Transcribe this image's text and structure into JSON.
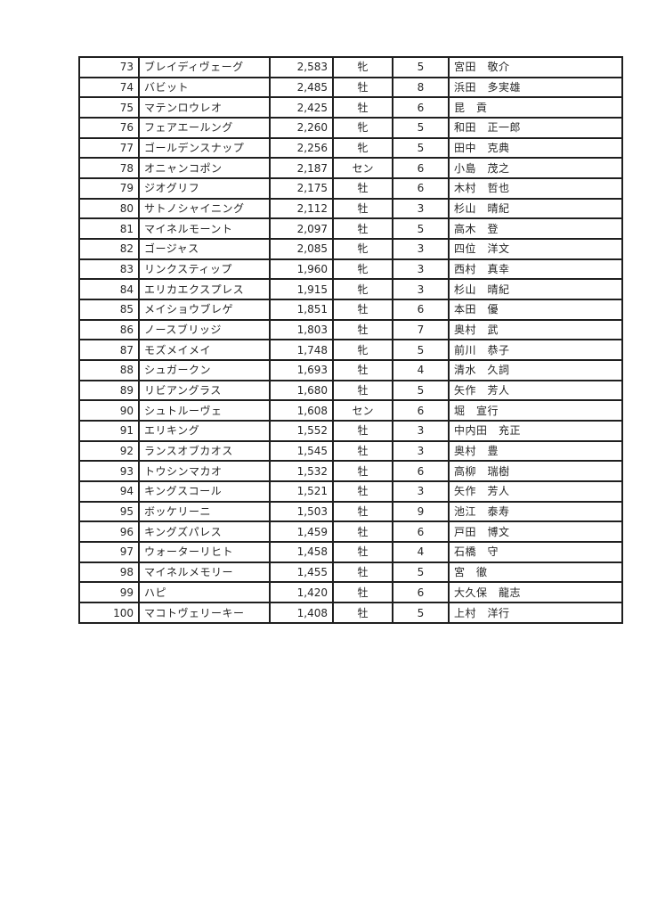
{
  "page": {
    "background_color": "#ffffff",
    "border_color": "#1f1f1f",
    "text_color": "#262626"
  },
  "table": {
    "description": "ranking-table-rows-73-to-100",
    "columns": [
      {
        "key": "rank",
        "align": "right"
      },
      {
        "key": "name",
        "align": "left"
      },
      {
        "key": "points",
        "align": "right"
      },
      {
        "key": "sex",
        "align": "center"
      },
      {
        "key": "age",
        "align": "center"
      },
      {
        "key": "trainer",
        "align": "left"
      }
    ],
    "rows": [
      {
        "rank": "73",
        "name": "ブレイディヴェーグ",
        "points": "2,583",
        "sex": "牝",
        "age": "5",
        "trainer": "宮田　敬介"
      },
      {
        "rank": "74",
        "name": "バビット",
        "points": "2,485",
        "sex": "牡",
        "age": "8",
        "trainer": "浜田　多実雄"
      },
      {
        "rank": "75",
        "name": "マテンロウレオ",
        "points": "2,425",
        "sex": "牡",
        "age": "6",
        "trainer": "昆　貢"
      },
      {
        "rank": "76",
        "name": "フェアエールング",
        "points": "2,260",
        "sex": "牝",
        "age": "5",
        "trainer": "和田　正一郎"
      },
      {
        "rank": "77",
        "name": "ゴールデンスナップ",
        "points": "2,256",
        "sex": "牝",
        "age": "5",
        "trainer": "田中　克典"
      },
      {
        "rank": "78",
        "name": "オニャンコポン",
        "points": "2,187",
        "sex": "セン",
        "age": "6",
        "trainer": "小島　茂之"
      },
      {
        "rank": "79",
        "name": "ジオグリフ",
        "points": "2,175",
        "sex": "牡",
        "age": "6",
        "trainer": "木村　哲也"
      },
      {
        "rank": "80",
        "name": "サトノシャイニング",
        "points": "2,112",
        "sex": "牡",
        "age": "3",
        "trainer": "杉山　晴紀"
      },
      {
        "rank": "81",
        "name": "マイネルモーント",
        "points": "2,097",
        "sex": "牡",
        "age": "5",
        "trainer": "高木　登"
      },
      {
        "rank": "82",
        "name": "ゴージャス",
        "points": "2,085",
        "sex": "牝",
        "age": "3",
        "trainer": "四位　洋文"
      },
      {
        "rank": "83",
        "name": "リンクスティップ",
        "points": "1,960",
        "sex": "牝",
        "age": "3",
        "trainer": "西村　真幸"
      },
      {
        "rank": "84",
        "name": "エリカエクスプレス",
        "points": "1,915",
        "sex": "牝",
        "age": "3",
        "trainer": "杉山　晴紀"
      },
      {
        "rank": "85",
        "name": "メイショウブレゲ",
        "points": "1,851",
        "sex": "牡",
        "age": "6",
        "trainer": "本田　優"
      },
      {
        "rank": "86",
        "name": "ノースブリッジ",
        "points": "1,803",
        "sex": "牡",
        "age": "7",
        "trainer": "奥村　武"
      },
      {
        "rank": "87",
        "name": "モズメイメイ",
        "points": "1,748",
        "sex": "牝",
        "age": "5",
        "trainer": "前川　恭子"
      },
      {
        "rank": "88",
        "name": "シュガークン",
        "points": "1,693",
        "sex": "牡",
        "age": "4",
        "trainer": "清水　久詞"
      },
      {
        "rank": "89",
        "name": "リビアングラス",
        "points": "1,680",
        "sex": "牡",
        "age": "5",
        "trainer": "矢作　芳人"
      },
      {
        "rank": "90",
        "name": "シュトルーヴェ",
        "points": "1,608",
        "sex": "セン",
        "age": "6",
        "trainer": "堀　宣行"
      },
      {
        "rank": "91",
        "name": "エリキング",
        "points": "1,552",
        "sex": "牡",
        "age": "3",
        "trainer": "中内田　充正"
      },
      {
        "rank": "92",
        "name": "ランスオブカオス",
        "points": "1,545",
        "sex": "牡",
        "age": "3",
        "trainer": "奥村　豊"
      },
      {
        "rank": "93",
        "name": "トウシンマカオ",
        "points": "1,532",
        "sex": "牡",
        "age": "6",
        "trainer": "高柳　瑞樹"
      },
      {
        "rank": "94",
        "name": "キングスコール",
        "points": "1,521",
        "sex": "牡",
        "age": "3",
        "trainer": "矢作　芳人"
      },
      {
        "rank": "95",
        "name": "ボッケリーニ",
        "points": "1,503",
        "sex": "牡",
        "age": "9",
        "trainer": "池江　泰寿"
      },
      {
        "rank": "96",
        "name": "キングズパレス",
        "points": "1,459",
        "sex": "牡",
        "age": "6",
        "trainer": "戸田　博文"
      },
      {
        "rank": "97",
        "name": "ウォーターリヒト",
        "points": "1,458",
        "sex": "牡",
        "age": "4",
        "trainer": "石橋　守"
      },
      {
        "rank": "98",
        "name": "マイネルメモリー",
        "points": "1,455",
        "sex": "牡",
        "age": "5",
        "trainer": "宮　徹"
      },
      {
        "rank": "99",
        "name": "ハピ",
        "points": "1,420",
        "sex": "牡",
        "age": "6",
        "trainer": "大久保　龍志"
      },
      {
        "rank": "100",
        "name": "マコトヴェリーキー",
        "points": "1,408",
        "sex": "牡",
        "age": "5",
        "trainer": "上村　洋行"
      }
    ]
  }
}
